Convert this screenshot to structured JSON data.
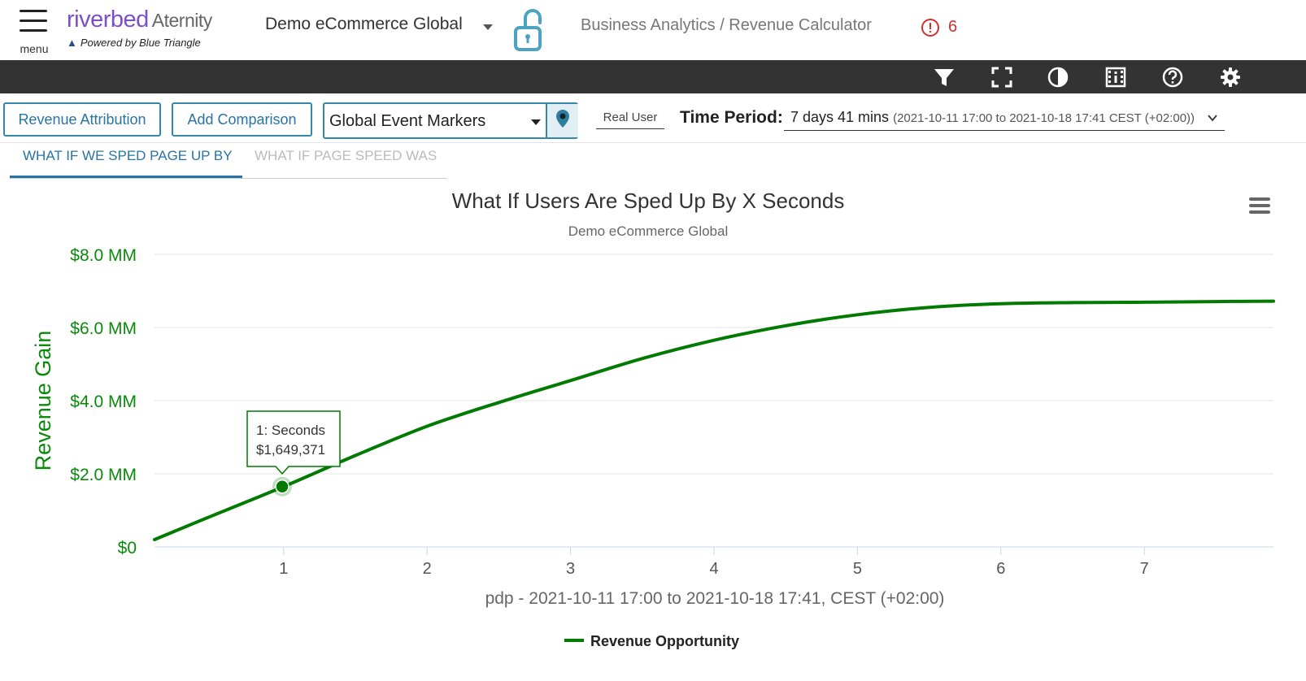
{
  "header": {
    "menu_label": "menu",
    "brand_name": "riverbed",
    "brand_product": "Aternity",
    "brand_powered": "Powered by Blue Triangle",
    "site_selector": "Demo eCommerce Global",
    "breadcrumb": "Business Analytics / Revenue Calculator",
    "alert_count": "6"
  },
  "toolbar": {
    "icons": [
      "filter-icon",
      "fullscreen-icon",
      "contrast-icon",
      "film-info-icon",
      "help-icon",
      "settings-icon"
    ]
  },
  "controls": {
    "revenue_attribution": "Revenue Attribution",
    "add_comparison": "Add Comparison",
    "event_markers": "Global Event Markers",
    "real_user": "Real User",
    "time_period_label": "Time Period:",
    "time_period_value": "7 days 41 mins",
    "time_period_range": "(2021-10-11 17:00 to 2021-10-18 17:41 CEST (+02:00))"
  },
  "tabs": [
    {
      "label": "WHAT IF WE SPED PAGE UP BY",
      "active": true
    },
    {
      "label": "WHAT IF PAGE SPEED WAS",
      "active": false
    }
  ],
  "chart_data": {
    "type": "line",
    "title": "What If Users Are Sped Up By X Seconds",
    "subtitle": "Demo eCommerce Global",
    "xlabel": "pdp - 2021-10-11 17:00 to 2021-10-18 17:41, CEST (+02:00)",
    "ylabel": "Revenue Gain",
    "x_ticks": [
      1,
      2,
      3,
      4,
      5,
      6,
      7
    ],
    "y_ticks": [
      "$0",
      "$2.0 MM",
      "$4.0 MM",
      "$6.0 MM",
      "$8.0 MM"
    ],
    "xlim": [
      0.1,
      7.9
    ],
    "ylim": [
      0,
      8
    ],
    "grid": true,
    "legend_position": "bottom",
    "series": [
      {
        "name": "Revenue Opportunity",
        "color": "#007a00",
        "x": [
          0.1,
          0.5,
          1.0,
          1.5,
          2.0,
          2.5,
          3.0,
          3.5,
          4.0,
          4.5,
          5.0,
          5.5,
          6.0,
          6.5,
          7.0,
          7.5,
          7.9
        ],
        "y": [
          0.2,
          0.85,
          1.65,
          2.5,
          3.3,
          3.95,
          4.55,
          5.15,
          5.65,
          6.05,
          6.35,
          6.55,
          6.65,
          6.68,
          6.69,
          6.71,
          6.72
        ]
      }
    ],
    "tooltip": {
      "x": 0.99,
      "y": 1.649371,
      "line1": "1: Seconds",
      "line2": "$1,649,371"
    }
  }
}
